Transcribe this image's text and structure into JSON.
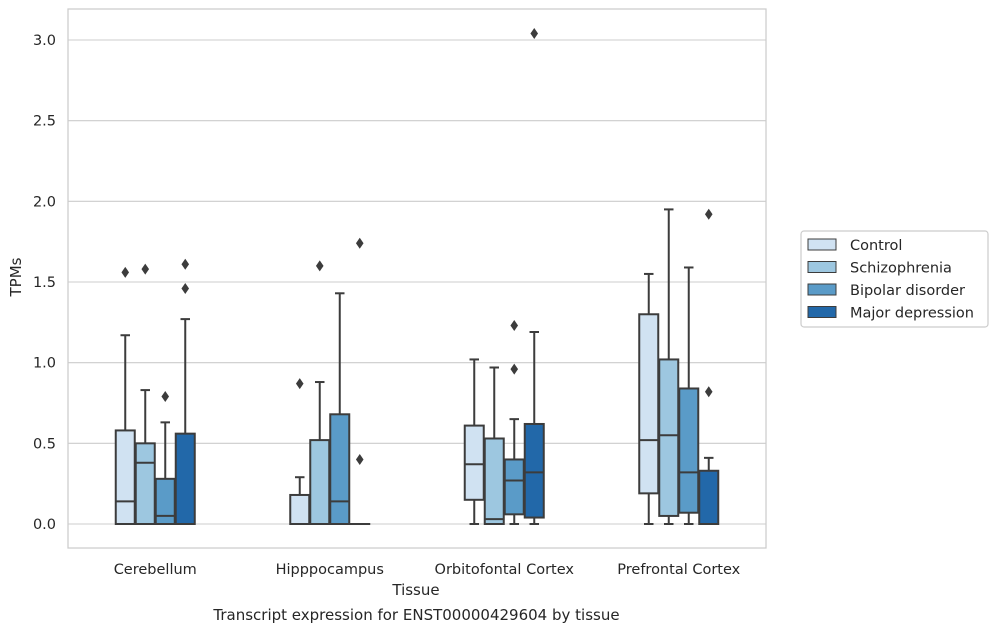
{
  "chart_data": {
    "type": "boxplot",
    "xlabel": "Tissue",
    "ylabel": "TPMs",
    "ylim": [
      -0.15,
      3.2
    ],
    "yticks": [
      0.0,
      0.5,
      1.0,
      1.5,
      2.0,
      2.5,
      3.0
    ],
    "ytick_labels": [
      "0.0",
      "0.5",
      "1.0",
      "1.5",
      "2.0",
      "2.5",
      "3.0"
    ],
    "grid": "horizontal",
    "legend_position": "right",
    "categories": [
      "Cerebellum",
      "Hipppocampus",
      "Orbitofontal Cortex",
      "Prefrontal Cortex"
    ],
    "series": [
      {
        "name": "Control",
        "color": "#d0e2f2",
        "boxes": [
          {
            "whislo": 0.0,
            "q1": 0.0,
            "med": 0.14,
            "q3": 0.58,
            "whishi": 1.17,
            "fliers": [
              1.56
            ]
          },
          {
            "whislo": 0.0,
            "q1": 0.0,
            "med": 0.0,
            "q3": 0.18,
            "whishi": 0.29,
            "fliers": [
              0.87
            ]
          },
          {
            "whislo": 0.0,
            "q1": 0.15,
            "med": 0.37,
            "q3": 0.61,
            "whishi": 1.02,
            "fliers": []
          },
          {
            "whislo": 0.0,
            "q1": 0.19,
            "med": 0.52,
            "q3": 1.3,
            "whishi": 1.55,
            "fliers": []
          }
        ]
      },
      {
        "name": "Schizophrenia",
        "color": "#9dc7e0",
        "boxes": [
          {
            "whislo": 0.0,
            "q1": 0.0,
            "med": 0.38,
            "q3": 0.5,
            "whishi": 0.83,
            "fliers": [
              1.58
            ]
          },
          {
            "whislo": 0.0,
            "q1": 0.0,
            "med": 0.0,
            "q3": 0.52,
            "whishi": 0.88,
            "fliers": [
              1.6
            ]
          },
          {
            "whislo": 0.0,
            "q1": 0.0,
            "med": 0.03,
            "q3": 0.53,
            "whishi": 0.97,
            "fliers": []
          },
          {
            "whislo": 0.0,
            "q1": 0.05,
            "med": 0.55,
            "q3": 1.02,
            "whishi": 1.95,
            "fliers": []
          }
        ]
      },
      {
        "name": "Bipolar disorder",
        "color": "#5a9bc8",
        "boxes": [
          {
            "whislo": 0.0,
            "q1": 0.0,
            "med": 0.05,
            "q3": 0.28,
            "whishi": 0.63,
            "fliers": [
              0.79
            ]
          },
          {
            "whislo": 0.0,
            "q1": 0.0,
            "med": 0.14,
            "q3": 0.68,
            "whishi": 1.43,
            "fliers": []
          },
          {
            "whislo": 0.0,
            "q1": 0.06,
            "med": 0.27,
            "q3": 0.4,
            "whishi": 0.65,
            "fliers": [
              0.96,
              1.23
            ]
          },
          {
            "whislo": 0.0,
            "q1": 0.07,
            "med": 0.32,
            "q3": 0.84,
            "whishi": 1.59,
            "fliers": []
          }
        ]
      },
      {
        "name": "Major depression",
        "color": "#2268a9",
        "boxes": [
          {
            "whislo": 0.0,
            "q1": 0.0,
            "med": 0.0,
            "q3": 0.56,
            "whishi": 1.27,
            "fliers": [
              1.46,
              1.61
            ]
          },
          {
            "whislo": 0.0,
            "q1": 0.0,
            "med": 0.0,
            "q3": 0.0,
            "whishi": 0.0,
            "fliers": [
              0.4,
              1.74
            ]
          },
          {
            "whislo": 0.0,
            "q1": 0.04,
            "med": 0.32,
            "q3": 0.62,
            "whishi": 1.19,
            "fliers": [
              3.04
            ]
          },
          {
            "whislo": 0.0,
            "q1": 0.0,
            "med": 0.0,
            "q3": 0.33,
            "whishi": 0.41,
            "fliers": [
              0.82,
              1.92
            ]
          }
        ]
      }
    ]
  },
  "caption": "Transcript expression for ENST00000429604 by tissue"
}
